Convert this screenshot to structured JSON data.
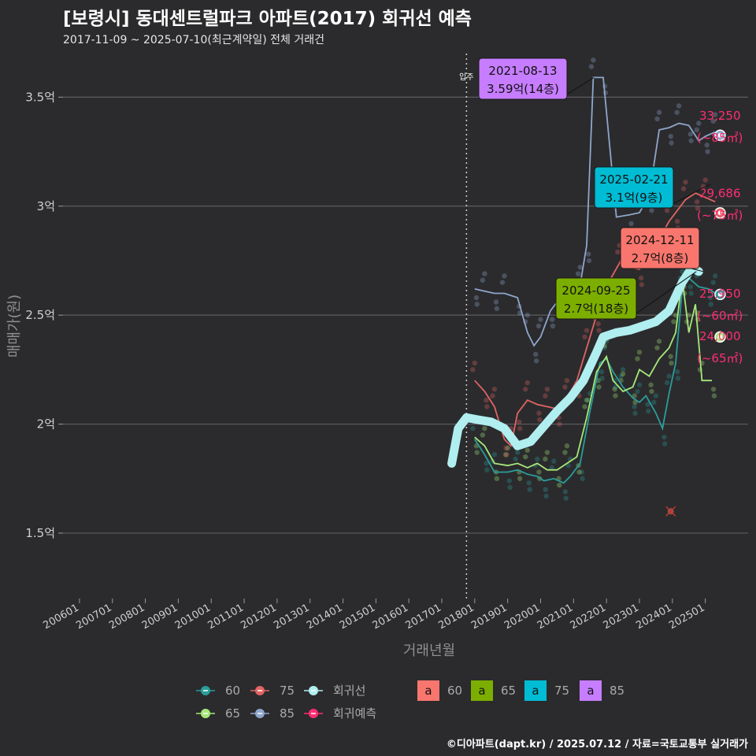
{
  "title": "[보령시] 동대센트럴파크 아파트(2017) 회귀선 예측",
  "subtitle": "2017-11-09 ~ 2025-07-10(최근계약일) 전체 거래건",
  "caption": "©디아파트(dapt.kr) / 2025.07.12 / 자료=국토교통부 실거래가",
  "chart_data": {
    "type": "line",
    "xlabel": "거래년월",
    "ylabel": "매매가(원)",
    "x_ticks": [
      "200601",
      "200701",
      "200801",
      "200901",
      "201001",
      "201101",
      "201201",
      "201301",
      "201401",
      "201501",
      "201601",
      "201701",
      "201801",
      "201901",
      "202001",
      "202101",
      "202201",
      "202301",
      "202401",
      "202501"
    ],
    "y_ticks": [
      {
        "value": 1.5,
        "label": "1.5억"
      },
      {
        "value": 2.0,
        "label": "2억"
      },
      {
        "value": 2.5,
        "label": "2.5억"
      },
      {
        "value": 3.0,
        "label": "3억"
      },
      {
        "value": 3.5,
        "label": "3.5억"
      }
    ],
    "xlim": [
      2005.5,
      2026.3
    ],
    "ylim": [
      1.2,
      3.7
    ],
    "grid": true,
    "legend_position": "bottom",
    "move_in": {
      "x": 2017.75,
      "label": "입주"
    },
    "colors": {
      "60": "#2a9d9a",
      "65": "#a6e87a",
      "75": "#e06464",
      "85": "#8fa6cc",
      "trend": "#b0eef0",
      "pred": "#ff2d72"
    },
    "series": [
      {
        "name": "60",
        "color": "#2a9d9a",
        "points": [
          [
            2018.0,
            1.93
          ],
          [
            2018.3,
            1.86
          ],
          [
            2018.6,
            1.78
          ],
          [
            2019.0,
            1.78
          ],
          [
            2019.3,
            1.79
          ],
          [
            2019.6,
            1.77
          ],
          [
            2019.9,
            1.76
          ],
          [
            2020.1,
            1.74
          ],
          [
            2020.4,
            1.75
          ],
          [
            2020.7,
            1.73
          ],
          [
            2020.9,
            1.76
          ],
          [
            2021.2,
            1.82
          ],
          [
            2021.5,
            2.06
          ],
          [
            2021.8,
            2.28
          ],
          [
            2022.0,
            2.3
          ],
          [
            2022.2,
            2.24
          ],
          [
            2022.5,
            2.17
          ],
          [
            2022.8,
            2.12
          ],
          [
            2023.0,
            2.1
          ],
          [
            2023.2,
            2.13
          ],
          [
            2023.5,
            2.05
          ],
          [
            2023.7,
            1.98
          ],
          [
            2023.9,
            2.14
          ],
          [
            2024.1,
            2.28
          ],
          [
            2024.3,
            2.62
          ],
          [
            2024.5,
            2.67
          ],
          [
            2024.8,
            2.63
          ],
          [
            2025.1,
            2.62
          ],
          [
            2025.3,
            2.6
          ]
        ]
      },
      {
        "name": "65",
        "color": "#a6e87a",
        "points": [
          [
            2018.0,
            1.94
          ],
          [
            2018.3,
            1.9
          ],
          [
            2018.6,
            1.82
          ],
          [
            2019.0,
            1.81
          ],
          [
            2019.3,
            1.82
          ],
          [
            2019.6,
            1.8
          ],
          [
            2019.9,
            1.82
          ],
          [
            2020.2,
            1.79
          ],
          [
            2020.5,
            1.79
          ],
          [
            2020.8,
            1.82
          ],
          [
            2021.1,
            1.85
          ],
          [
            2021.4,
            2.03
          ],
          [
            2021.7,
            2.24
          ],
          [
            2022.0,
            2.31
          ],
          [
            2022.2,
            2.2
          ],
          [
            2022.5,
            2.15
          ],
          [
            2022.8,
            2.17
          ],
          [
            2023.0,
            2.25
          ],
          [
            2023.3,
            2.22
          ],
          [
            2023.6,
            2.3
          ],
          [
            2023.9,
            2.35
          ],
          [
            2024.1,
            2.42
          ],
          [
            2024.3,
            2.67
          ],
          [
            2024.5,
            2.42
          ],
          [
            2024.7,
            2.55
          ],
          [
            2024.9,
            2.2
          ],
          [
            2025.2,
            2.2
          ]
        ]
      },
      {
        "name": "75",
        "color": "#e06464",
        "points": [
          [
            2018.0,
            2.2
          ],
          [
            2018.3,
            2.15
          ],
          [
            2018.6,
            2.08
          ],
          [
            2018.9,
            1.93
          ],
          [
            2019.1,
            1.9
          ],
          [
            2019.3,
            2.05
          ],
          [
            2019.6,
            2.11
          ],
          [
            2019.9,
            2.09
          ],
          [
            2020.2,
            2.08
          ],
          [
            2020.5,
            2.07
          ],
          [
            2020.8,
            2.12
          ],
          [
            2021.1,
            2.2
          ],
          [
            2021.4,
            2.35
          ],
          [
            2021.7,
            2.5
          ],
          [
            2021.9,
            2.57
          ],
          [
            2022.1,
            2.66
          ],
          [
            2022.4,
            2.74
          ],
          [
            2022.6,
            2.8
          ],
          [
            2022.7,
            2.72
          ],
          [
            2023.0,
            2.71
          ],
          [
            2023.3,
            2.77
          ],
          [
            2023.6,
            2.85
          ],
          [
            2023.9,
            2.93
          ],
          [
            2024.1,
            2.97
          ],
          [
            2024.4,
            3.03
          ],
          [
            2024.7,
            3.06
          ],
          [
            2025.0,
            3.04
          ],
          [
            2025.3,
            3.02
          ]
        ]
      },
      {
        "name": "85",
        "color": "#8fa6cc",
        "points": [
          [
            2018.0,
            2.62
          ],
          [
            2018.3,
            2.61
          ],
          [
            2018.6,
            2.6
          ],
          [
            2018.9,
            2.6
          ],
          [
            2019.3,
            2.58
          ],
          [
            2019.6,
            2.42
          ],
          [
            2019.8,
            2.36
          ],
          [
            2020.0,
            2.4
          ],
          [
            2020.3,
            2.52
          ],
          [
            2020.6,
            2.58
          ],
          [
            2020.9,
            2.6
          ],
          [
            2021.2,
            2.64
          ],
          [
            2021.4,
            2.82
          ],
          [
            2021.6,
            3.59
          ],
          [
            2021.9,
            3.59
          ],
          [
            2022.3,
            2.95
          ],
          [
            2022.7,
            2.96
          ],
          [
            2023.0,
            2.97
          ],
          [
            2023.3,
            3.05
          ],
          [
            2023.6,
            3.35
          ],
          [
            2023.9,
            3.36
          ],
          [
            2024.2,
            3.38
          ],
          [
            2024.5,
            3.37
          ],
          [
            2024.8,
            3.3
          ],
          [
            2025.0,
            3.32
          ],
          [
            2025.3,
            3.34
          ]
        ]
      }
    ],
    "trend": {
      "name": "회귀선",
      "color": "#b0eef0",
      "points": [
        [
          2017.3,
          1.82
        ],
        [
          2017.5,
          1.98
        ],
        [
          2017.75,
          2.03
        ],
        [
          2018.1,
          2.02
        ],
        [
          2018.5,
          2.01
        ],
        [
          2018.9,
          1.98
        ],
        [
          2019.3,
          1.9
        ],
        [
          2019.7,
          1.92
        ],
        [
          2020.1,
          1.99
        ],
        [
          2020.5,
          2.06
        ],
        [
          2020.9,
          2.12
        ],
        [
          2021.3,
          2.2
        ],
        [
          2021.7,
          2.33
        ],
        [
          2021.9,
          2.4
        ],
        [
          2022.3,
          2.42
        ],
        [
          2022.7,
          2.43
        ],
        [
          2023.1,
          2.45
        ],
        [
          2023.5,
          2.47
        ],
        [
          2023.9,
          2.52
        ],
        [
          2024.3,
          2.65
        ],
        [
          2024.6,
          2.72
        ],
        [
          2024.8,
          2.7
        ]
      ]
    },
    "predictions": [
      {
        "name": "85",
        "x": 2025.45,
        "y": 3.325,
        "value_label": "33,250",
        "area_label": "(~85㎡)",
        "color": "#8fa6cc"
      },
      {
        "name": "75",
        "x": 2025.45,
        "y": 2.969,
        "value_label": "29,686",
        "area_label": "(~75㎡)",
        "color": "#e06464"
      },
      {
        "name": "60",
        "x": 2025.45,
        "y": 2.595,
        "value_label": "25,950",
        "area_label": "(~60㎡)",
        "color": "#2a9d9a"
      },
      {
        "name": "65",
        "x": 2025.45,
        "y": 2.4,
        "value_label": "24,000",
        "area_label": "(~65㎡)",
        "color": "#a6e87a"
      }
    ],
    "annotations": [
      {
        "area": "85",
        "date": "2021-08-13",
        "text": "3.59억(14층)",
        "color": "#c77dff",
        "x": 2021.62,
        "y": 3.59
      },
      {
        "area": "75",
        "date": "2025-02-21",
        "text": "3.1억(9층)",
        "color": "#00bcd4",
        "x": 2025.14,
        "y": 3.1
      },
      {
        "area": "60",
        "date": "2024-12-11",
        "text": "2.7억(8층)",
        "color": "#f8766d",
        "x": 2024.94,
        "y": 2.7
      },
      {
        "area": "65",
        "date": "2024-09-25",
        "text": "2.7억(18층)",
        "color": "#7cae00",
        "x": 2024.73,
        "y": 2.7
      }
    ],
    "scatter_markers": [
      {
        "series": "75",
        "x": 2021.75,
        "y": 2.5
      },
      {
        "series": "75",
        "x": 2023.95,
        "y": 1.6
      }
    ],
    "legend": {
      "area_items": [
        {
          "label": "60",
          "color": "#2a9d9a"
        },
        {
          "label": "75",
          "color": "#e06464"
        },
        {
          "label": "65",
          "color": "#a6e87a"
        },
        {
          "label": "85",
          "color": "#8fa6cc"
        }
      ],
      "line_items": [
        {
          "label": "회귀선",
          "color": "#b0eef0"
        },
        {
          "label": "회귀예측",
          "color": "#ff2d72"
        }
      ],
      "label_items": [
        {
          "glyph": "a",
          "label": "60",
          "color": "#f8766d"
        },
        {
          "glyph": "a",
          "label": "65",
          "color": "#7cae00"
        },
        {
          "glyph": "a",
          "label": "75",
          "color": "#00bcd4"
        },
        {
          "glyph": "a",
          "label": "85",
          "color": "#c77dff"
        }
      ]
    }
  }
}
